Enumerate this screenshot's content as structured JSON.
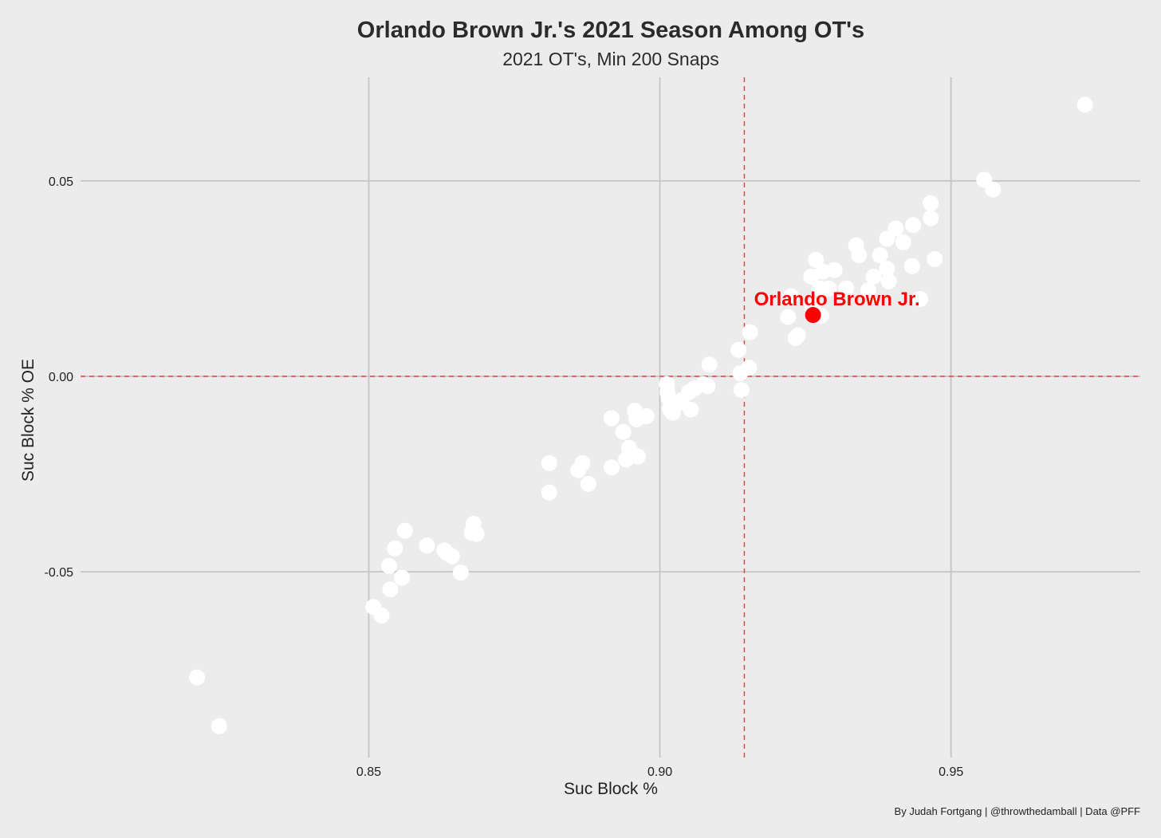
{
  "chart_data": {
    "type": "scatter",
    "title": "Orlando Brown Jr.'s 2021 Season Among OT's",
    "subtitle": "2021 OT's, Min 200 Snaps",
    "xlabel": "Suc Block %",
    "ylabel": "Suc Block % OE",
    "caption": "By Judah Fortgang | @throwthedamball | Data @PFF",
    "xlim": [
      0.8005,
      0.9825
    ],
    "ylim": [
      -0.0975,
      0.0765
    ],
    "xticks": [
      0.85,
      0.9,
      0.95
    ],
    "xtick_labels": [
      "0.85",
      "0.90",
      "0.95"
    ],
    "yticks": [
      -0.05,
      0.0,
      0.05
    ],
    "ytick_labels": [
      "-0.05",
      "0.00",
      "0.05"
    ],
    "reference_lines": {
      "x": 0.9145,
      "y": 0.0
    },
    "colors": {
      "background": "#ececec",
      "points": "#ffffff",
      "highlight": "#ff0000",
      "reference": "#e0474c",
      "grid": "#c8c8c8"
    },
    "highlight": {
      "label": "Orlando Brown Jr.",
      "x": 0.9263,
      "y": 0.0157
    },
    "points": [
      {
        "x": 0.8205,
        "y": -0.077
      },
      {
        "x": 0.8243,
        "y": -0.0895
      },
      {
        "x": 0.8508,
        "y": -0.059
      },
      {
        "x": 0.8522,
        "y": -0.0612
      },
      {
        "x": 0.8535,
        "y": -0.0485
      },
      {
        "x": 0.8537,
        "y": -0.0545
      },
      {
        "x": 0.8545,
        "y": -0.044
      },
      {
        "x": 0.8557,
        "y": -0.0515
      },
      {
        "x": 0.8562,
        "y": -0.0395
      },
      {
        "x": 0.86,
        "y": -0.0433
      },
      {
        "x": 0.863,
        "y": -0.0445
      },
      {
        "x": 0.8634,
        "y": -0.0452
      },
      {
        "x": 0.8643,
        "y": -0.046
      },
      {
        "x": 0.8658,
        "y": -0.0502
      },
      {
        "x": 0.8677,
        "y": -0.04
      },
      {
        "x": 0.868,
        "y": -0.0377
      },
      {
        "x": 0.8685,
        "y": -0.0403
      },
      {
        "x": 0.881,
        "y": -0.0222
      },
      {
        "x": 0.881,
        "y": -0.0297
      },
      {
        "x": 0.886,
        "y": -0.024
      },
      {
        "x": 0.8867,
        "y": -0.0222
      },
      {
        "x": 0.8877,
        "y": -0.0275
      },
      {
        "x": 0.8917,
        "y": -0.0107
      },
      {
        "x": 0.8917,
        "y": -0.0233
      },
      {
        "x": 0.8937,
        "y": -0.0142
      },
      {
        "x": 0.8942,
        "y": -0.0213
      },
      {
        "x": 0.8947,
        "y": -0.0183
      },
      {
        "x": 0.8952,
        "y": -0.0197
      },
      {
        "x": 0.8957,
        "y": -0.0088
      },
      {
        "x": 0.896,
        "y": -0.011
      },
      {
        "x": 0.8962,
        "y": -0.0205
      },
      {
        "x": 0.8977,
        "y": -0.0102
      },
      {
        "x": 0.9012,
        "y": -0.002
      },
      {
        "x": 0.9013,
        "y": -0.004
      },
      {
        "x": 0.9015,
        "y": -0.0055
      },
      {
        "x": 0.9017,
        "y": -0.0083
      },
      {
        "x": 0.9022,
        "y": -0.0093
      },
      {
        "x": 0.903,
        "y": -0.007
      },
      {
        "x": 0.9037,
        "y": -0.0062
      },
      {
        "x": 0.905,
        "y": -0.004
      },
      {
        "x": 0.9053,
        "y": -0.0085
      },
      {
        "x": 0.906,
        "y": -0.003
      },
      {
        "x": 0.9075,
        "y": -0.002
      },
      {
        "x": 0.9082,
        "y": -0.0025
      },
      {
        "x": 0.9085,
        "y": 0.003
      },
      {
        "x": 0.9135,
        "y": 0.0068
      },
      {
        "x": 0.9138,
        "y": 0.0008
      },
      {
        "x": 0.914,
        "y": -0.0035
      },
      {
        "x": 0.9153,
        "y": 0.0022
      },
      {
        "x": 0.9155,
        "y": 0.0113
      },
      {
        "x": 0.922,
        "y": 0.0152
      },
      {
        "x": 0.9225,
        "y": 0.0205
      },
      {
        "x": 0.9233,
        "y": 0.0098
      },
      {
        "x": 0.9237,
        "y": 0.0105
      },
      {
        "x": 0.926,
        "y": 0.0255
      },
      {
        "x": 0.9262,
        "y": 0.0178
      },
      {
        "x": 0.9268,
        "y": 0.0298
      },
      {
        "x": 0.9275,
        "y": 0.0225
      },
      {
        "x": 0.9277,
        "y": 0.0155
      },
      {
        "x": 0.928,
        "y": 0.0268
      },
      {
        "x": 0.929,
        "y": 0.0225
      },
      {
        "x": 0.93,
        "y": 0.0272
      },
      {
        "x": 0.932,
        "y": 0.0225
      },
      {
        "x": 0.9337,
        "y": 0.0335
      },
      {
        "x": 0.9342,
        "y": 0.031
      },
      {
        "x": 0.9358,
        "y": 0.022
      },
      {
        "x": 0.9367,
        "y": 0.0255
      },
      {
        "x": 0.9378,
        "y": 0.031
      },
      {
        "x": 0.939,
        "y": 0.0352
      },
      {
        "x": 0.939,
        "y": 0.0275
      },
      {
        "x": 0.9393,
        "y": 0.0243
      },
      {
        "x": 0.9405,
        "y": 0.0378
      },
      {
        "x": 0.9418,
        "y": 0.0343
      },
      {
        "x": 0.9433,
        "y": 0.0282
      },
      {
        "x": 0.9435,
        "y": 0.0387
      },
      {
        "x": 0.9447,
        "y": 0.0198
      },
      {
        "x": 0.9465,
        "y": 0.0443
      },
      {
        "x": 0.9465,
        "y": 0.0405
      },
      {
        "x": 0.9472,
        "y": 0.03
      },
      {
        "x": 0.9557,
        "y": 0.0503
      },
      {
        "x": 0.9572,
        "y": 0.0478
      },
      {
        "x": 0.973,
        "y": 0.0695
      }
    ]
  }
}
